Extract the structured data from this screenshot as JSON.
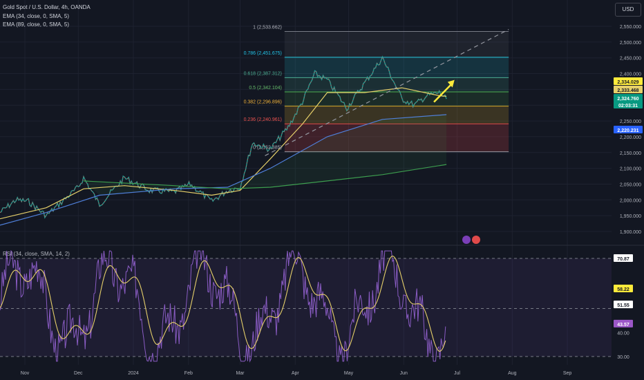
{
  "header": {
    "title": "Gold Spot / U.S. Dollar, 4h, OANDA",
    "ema1": "EMA (34, close, 0, SMA, 5)",
    "ema2": "EMA (89, close, 0, SMA, 5)",
    "currency": "USD",
    "rsi_label": "RSI (34, close, SMA, 14, 2)"
  },
  "chart_data": {
    "type": "line",
    "title": "Gold Spot / U.S. Dollar, 4h, OANDA",
    "price_axis": {
      "ylim": [
        1850,
        2600
      ],
      "ticks": [
        1900,
        1950,
        2000,
        2050,
        2100,
        2150,
        2200,
        2250,
        2300,
        2350,
        2400,
        2450,
        2500,
        2550
      ],
      "tick_labels": [
        "1,900.000",
        "1,950.000",
        "2,000.000",
        "2,050.000",
        "2,100.000",
        "2,150.000",
        "2,200.000",
        "2,250.000",
        "2,300.000",
        "2,350.000",
        "2,400.000",
        "2,450.000",
        "2,500.000",
        "2,550.000"
      ]
    },
    "x_axis": {
      "ticks": [
        "Nov",
        "Dec",
        "2024",
        "Feb",
        "Mar",
        "Apr",
        "May",
        "Jun",
        "Jul",
        "Aug",
        "Sep"
      ]
    },
    "series": [
      {
        "name": "Gold Spot / U.S. Dollar",
        "color": "#d1d4dc",
        "x": [
          "2023-10-18",
          "2023-10-27",
          "2023-11-03",
          "2023-11-13",
          "2023-11-24",
          "2023-12-01",
          "2023-12-04",
          "2023-12-13",
          "2023-12-27",
          "2024-01-10",
          "2024-01-24",
          "2024-02-02",
          "2024-02-14",
          "2024-02-23",
          "2024-03-01",
          "2024-03-08",
          "2024-03-18",
          "2024-03-28",
          "2024-04-05",
          "2024-04-12",
          "2024-04-19",
          "2024-04-30",
          "2024-05-10",
          "2024-05-20",
          "2024-05-31",
          "2024-06-07",
          "2024-06-14",
          "2024-06-21",
          "2024-06-25"
        ],
        "y": [
          1960,
          2000,
          1995,
          1950,
          2005,
          2040,
          2070,
          1985,
          2070,
          2030,
          2025,
          2050,
          1995,
          2030,
          2040,
          2180,
          2160,
          2230,
          2310,
          2400,
          2380,
          2290,
          2370,
          2450,
          2320,
          2300,
          2330,
          2340,
          2320
        ]
      },
      {
        "name": "EMA 34",
        "color": "#e6d06a",
        "x": [
          "2023-10-18",
          "2023-11-13",
          "2023-12-04",
          "2023-12-27",
          "2024-01-24",
          "2024-02-14",
          "2024-03-01",
          "2024-03-18",
          "2024-04-05",
          "2024-04-19",
          "2024-05-10",
          "2024-05-31",
          "2024-06-21",
          "2024-06-25"
        ],
        "y": [
          1940,
          1975,
          2035,
          2045,
          2030,
          2015,
          2030,
          2130,
          2240,
          2340,
          2340,
          2355,
          2330,
          2328
        ]
      },
      {
        "name": "EMA 89",
        "color": "#4f7fd9",
        "x": [
          "2023-10-18",
          "2023-11-13",
          "2023-12-13",
          "2024-01-24",
          "2024-02-23",
          "2024-03-18",
          "2024-04-19",
          "2024-05-20",
          "2024-06-25"
        ],
        "y": [
          1920,
          1960,
          2015,
          2035,
          2040,
          2100,
          2200,
          2255,
          2270
        ]
      },
      {
        "name": "EMA 200",
        "color": "#3d9e4f",
        "x": [
          "2023-12-04",
          "2024-01-24",
          "2024-02-23",
          "2024-03-18",
          "2024-04-19",
          "2024-05-20",
          "2024-06-25"
        ],
        "y": [
          2060,
          2045,
          2035,
          2040,
          2060,
          2080,
          2112
        ]
      }
    ],
    "fibonacci": [
      {
        "ratio": "1",
        "value": "2,533.662",
        "label_color": "#b2b5be",
        "line_color": "#787b86"
      },
      {
        "ratio": "0.786",
        "value": "2,451.675",
        "label_color": "#22c4e8",
        "line_color": "#26c6da"
      },
      {
        "ratio": "0.618",
        "value": "2,387.312",
        "label_color": "#4caf93",
        "line_color": "#4caf93"
      },
      {
        "ratio": "0.5",
        "value": "2,342.104",
        "label_color": "#66bb6a",
        "line_color": "#4caf50"
      },
      {
        "ratio": "0.382",
        "value": "2,296.896",
        "label_color": "#f0b23a",
        "line_color": "#d6a928"
      },
      {
        "ratio": "0.236",
        "value": "2,240.961",
        "label_color": "#ef5350",
        "line_color": "#e04a4a"
      },
      {
        "ratio": "0",
        "value": "2,152.385",
        "label_color": "#b2b5be",
        "line_color": "#9598a1"
      }
    ],
    "price_tags": [
      {
        "text": "2,334.029",
        "bg": "#ffeb3b",
        "color": "#131722"
      },
      {
        "text": "2,333.468",
        "bg": "#e6d06a",
        "color": "#131722"
      },
      {
        "text": "2,324.760",
        "bg": "#089981",
        "color": "#ffffff"
      },
      {
        "text": "02:03:31",
        "bg": "#089981",
        "color": "#ffffff"
      },
      {
        "text": "2,220.231",
        "bg": "#2962ff",
        "color": "#ffffff"
      }
    ],
    "rsi": {
      "ylim": [
        25,
        75
      ],
      "levels": [
        70,
        50,
        30
      ],
      "ticks": [
        "70.87",
        "58.22",
        "51.55",
        "43.57",
        "40.00",
        "30.00"
      ],
      "tag_colors": {
        "70.87": "#ffffff",
        "58.22": "#ffeb3b",
        "51.55": "#ffffff",
        "43.57": "#9c57c8"
      },
      "line_color": "#8a5cc4",
      "signal_color": "#e6d06a"
    }
  }
}
